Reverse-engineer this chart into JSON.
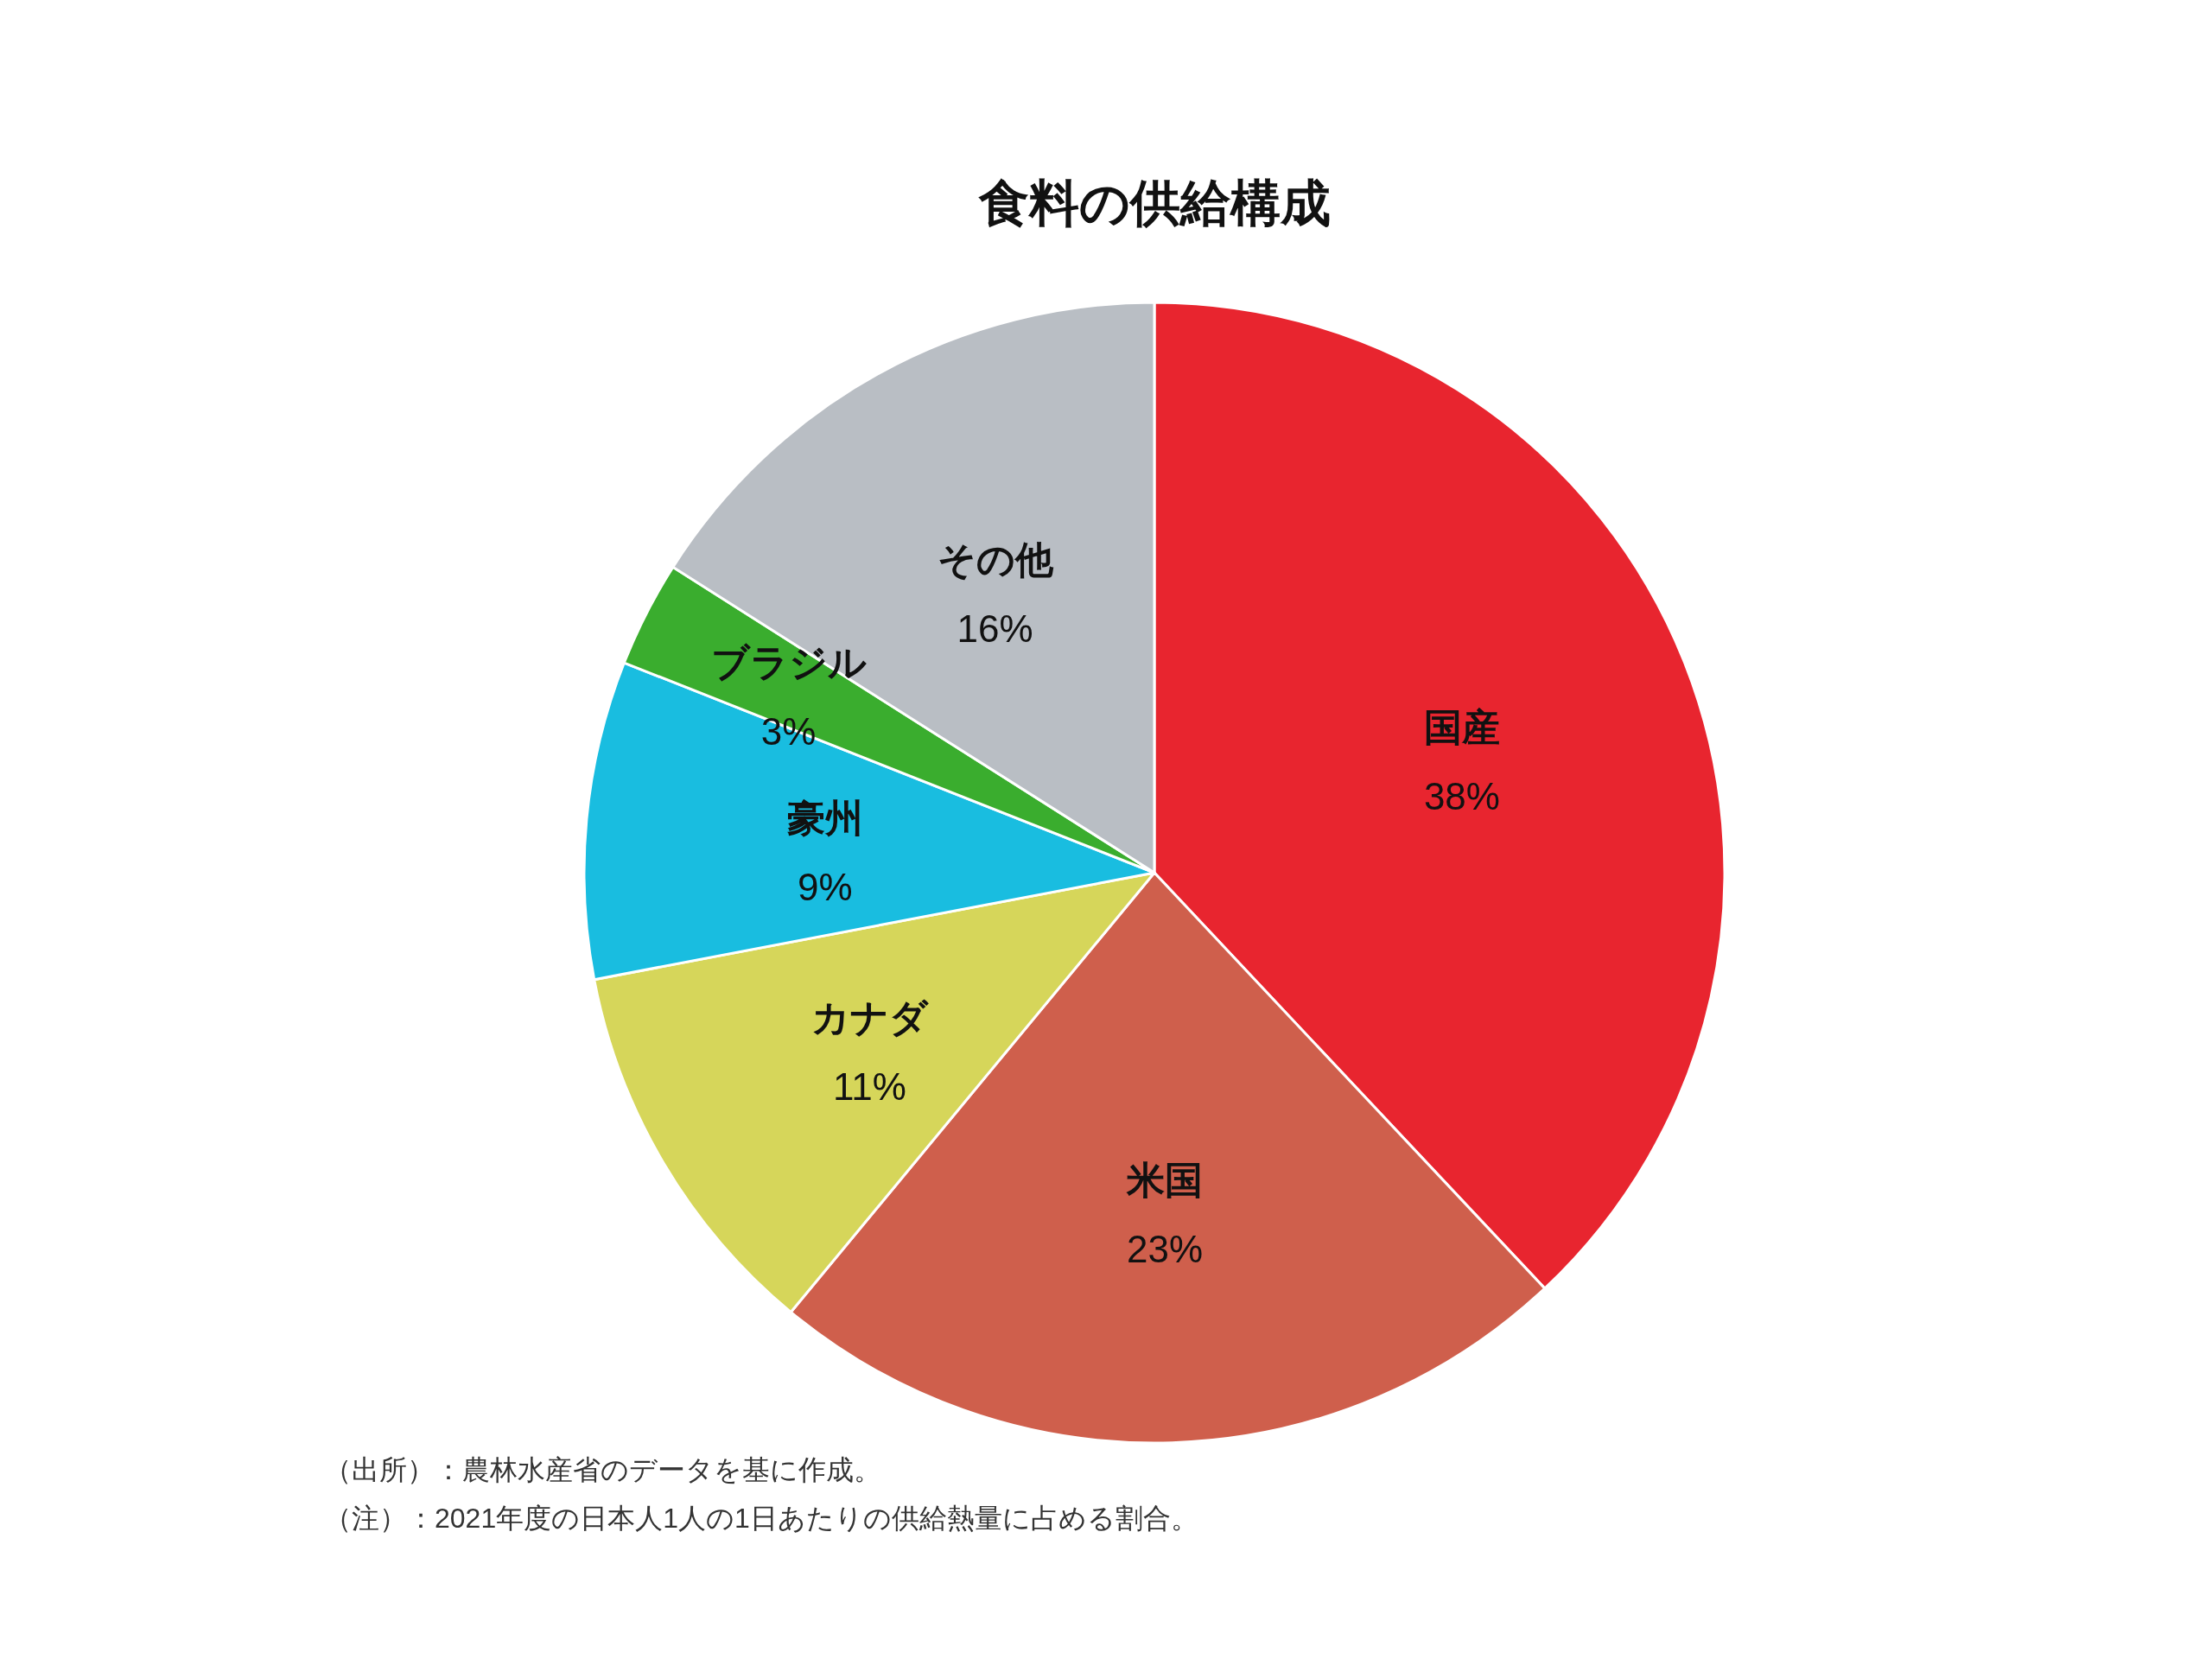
{
  "chart_data": {
    "type": "pie",
    "title": "食料の供給構成",
    "categories": [
      "国産",
      "米国",
      "カナダ",
      "豪州",
      "ブラジル",
      "その他"
    ],
    "values": [
      38,
      23,
      11,
      9,
      3,
      16
    ],
    "colors": [
      "#e8252f",
      "#cf5f4c",
      "#d6d65a",
      "#19bde0",
      "#3aad2e",
      "#b9bec4"
    ],
    "value_labels": [
      "38%",
      "23%",
      "11%",
      "9%",
      "3%",
      "16%"
    ],
    "annotations": [
      "（出所）：農林水産省のデータを基に作成。",
      "（注）：2021年度の日本人1人の1日あたりの供給熱量に占める割合。"
    ]
  }
}
